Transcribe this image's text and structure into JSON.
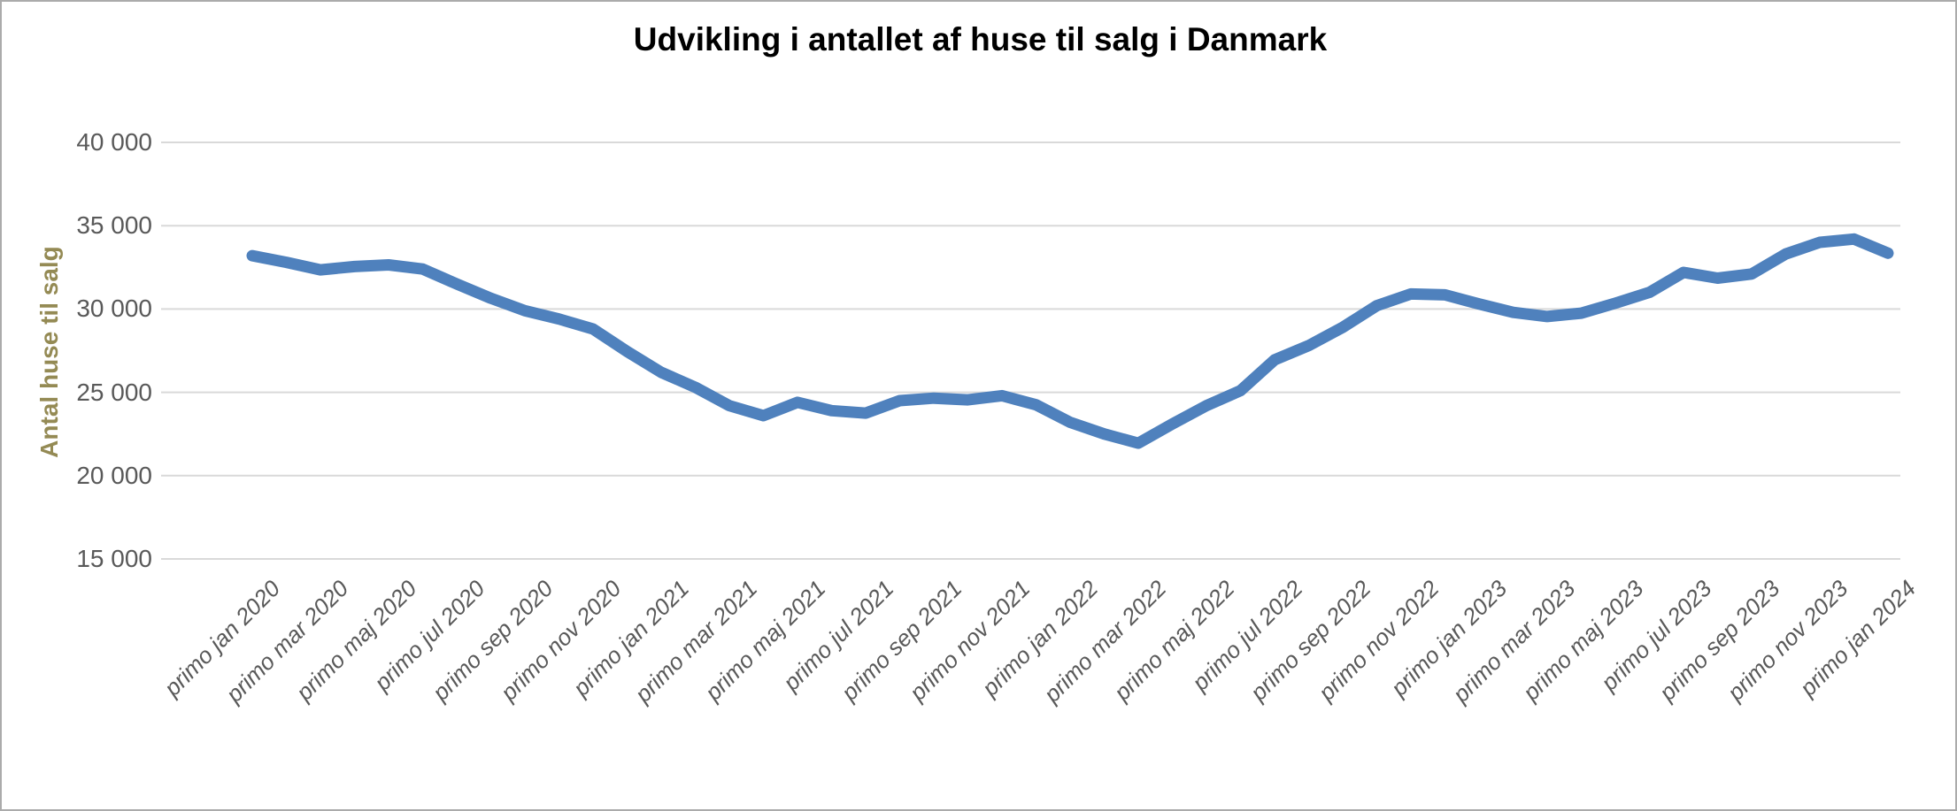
{
  "title": "Udvikling i antallet af huse til salg i Danmark",
  "colors": {
    "series_line": "#4f81bd",
    "gridline": "#d9d9d9",
    "tick_text": "#595959",
    "title_text": "#000000",
    "y_axis_title_text": "#948a54",
    "frame_border": "#ababab",
    "background": "#ffffff"
  },
  "chart_data": {
    "type": "line",
    "title": "Udvikling i antallet af huse til salg i Danmark",
    "xlabel": "",
    "ylabel": "Antal huse til salg",
    "ylim": [
      15000,
      40000
    ],
    "y_tick_step": 5000,
    "grid": "horizontal",
    "legend": "none",
    "y_tick_labels": [
      "40 000",
      "35 000",
      "30 000",
      "25 000",
      "20 000",
      "15 000"
    ],
    "x_tick_labels": [
      "primo jan 2020",
      "primo mar 2020",
      "primo maj 2020",
      "primo jul 2020",
      "primo sep 2020",
      "primo nov 2020",
      "primo jan 2021",
      "primo mar 2021",
      "primo maj 2021",
      "primo jul 2021",
      "primo sep 2021",
      "primo nov 2021",
      "primo jan 2022",
      "primo mar 2022",
      "primo maj 2022",
      "primo jul 2022",
      "primo sep 2022",
      "primo nov 2022",
      "primo jan 2023",
      "primo mar 2023",
      "primo maj 2023",
      "primo jul 2023",
      "primo sep 2023",
      "primo nov 2023",
      "primo jan 2024"
    ],
    "x": [
      "primo jan 2020",
      "primo feb 2020",
      "primo mar 2020",
      "primo apr 2020",
      "primo maj 2020",
      "primo jun 2020",
      "primo jul 2020",
      "primo aug 2020",
      "primo sep 2020",
      "primo okt 2020",
      "primo nov 2020",
      "primo dec 2020",
      "primo jan 2021",
      "primo feb 2021",
      "primo mar 2021",
      "primo apr 2021",
      "primo maj 2021",
      "primo jun 2021",
      "primo jul 2021",
      "primo aug 2021",
      "primo sep 2021",
      "primo okt 2021",
      "primo nov 2021",
      "primo dec 2021",
      "primo jan 2022",
      "primo feb 2022",
      "primo mar 2022",
      "primo apr 2022",
      "primo maj 2022",
      "primo jun 2022",
      "primo jul 2022",
      "primo aug 2022",
      "primo sep 2022",
      "primo okt 2022",
      "primo nov 2022",
      "primo dec 2022",
      "primo jan 2023",
      "primo feb 2023",
      "primo mar 2023",
      "primo apr 2023",
      "primo maj 2023",
      "primo jun 2023",
      "primo jul 2023",
      "primo aug 2023",
      "primo sep 2023",
      "primo okt 2023",
      "primo nov 2023",
      "primo dec 2023",
      "primo jan 2024"
    ],
    "series": [
      {
        "name": "Antal huse til salg",
        "color": "#4f81bd",
        "values": [
          33200,
          32800,
          32350,
          32550,
          32650,
          32400,
          31500,
          30650,
          29900,
          29400,
          28800,
          27450,
          26200,
          25300,
          24200,
          23600,
          24400,
          23900,
          23750,
          24500,
          24650,
          24550,
          24800,
          24250,
          23200,
          22500,
          21950,
          23100,
          24200,
          25100,
          26950,
          27800,
          28900,
          30200,
          30900,
          30850,
          30300,
          29800,
          29550,
          29750,
          30350,
          31000,
          32200,
          31850,
          32100,
          33300,
          34000,
          34200,
          33350
        ]
      }
    ]
  }
}
